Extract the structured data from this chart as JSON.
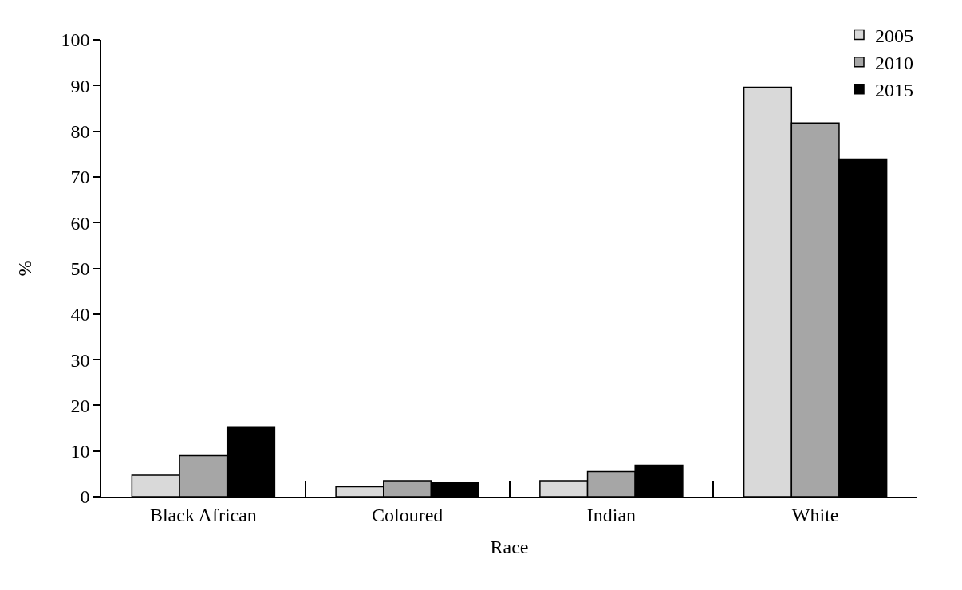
{
  "chart_data": {
    "type": "bar",
    "xlabel": "Race",
    "ylabel": "%",
    "categories": [
      "Black African",
      "Coloured",
      "Indian",
      "White"
    ],
    "series": [
      {
        "name": "2005",
        "color": "#d9d9d9",
        "values": [
          4.7,
          2.2,
          3.5,
          89.6
        ]
      },
      {
        "name": "2010",
        "color": "#a6a6a6",
        "values": [
          9.0,
          3.5,
          5.5,
          81.8
        ]
      },
      {
        "name": "2015",
        "color": "#000000",
        "values": [
          15.3,
          3.2,
          6.9,
          73.9
        ]
      }
    ],
    "ylim": [
      0,
      100
    ],
    "yticks": [
      0,
      10,
      20,
      30,
      40,
      50,
      60,
      70,
      80,
      90,
      100
    ],
    "grid": false,
    "legend": "top right"
  }
}
